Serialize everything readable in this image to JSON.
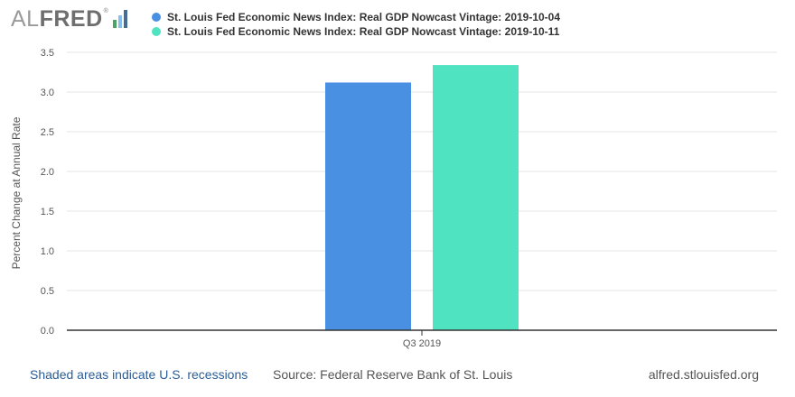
{
  "logo": {
    "part1": "AL",
    "part2": "FRED",
    "reg_mark": "®",
    "bar_colors": [
      "#4aa564",
      "#88bdf0",
      "#466b95"
    ]
  },
  "chart_data": {
    "type": "bar",
    "categories": [
      "Q3 2019"
    ],
    "series": [
      {
        "name": "St. Louis Fed Economic News Index: Real GDP Nowcast Vintage: 2019-10-04",
        "values": [
          3.12
        ],
        "color": "#4a90e2"
      },
      {
        "name": "St. Louis Fed Economic News Index: Real GDP Nowcast Vintage: 2019-10-11",
        "values": [
          3.34
        ],
        "color": "#50e3c2"
      }
    ],
    "title": "",
    "xlabel": "",
    "ylabel": "Percent Change at Annual Rate",
    "ylim": [
      0,
      3.5
    ],
    "yticks": [
      0.0,
      0.5,
      1.0,
      1.5,
      2.0,
      2.5,
      3.0,
      3.5
    ],
    "ytick_labels": [
      "0.0",
      "0.5",
      "1.0",
      "1.5",
      "2.0",
      "2.5",
      "3.0",
      "3.5"
    ],
    "grid": true,
    "legend_position": "top"
  },
  "footer": {
    "recessions": "Shaded areas indicate U.S. recessions",
    "source": "Source: Federal Reserve Bank of St. Louis",
    "site": "alfred.stlouisfed.org"
  }
}
